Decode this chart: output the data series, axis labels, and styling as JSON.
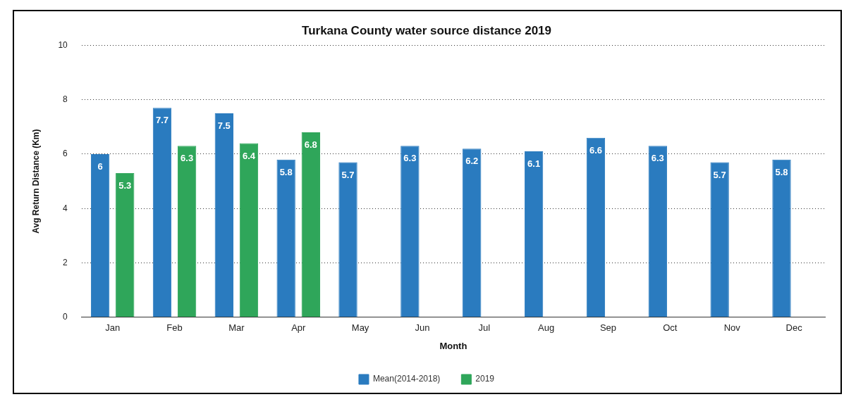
{
  "chart_data": {
    "type": "bar",
    "title": "Turkana County water source distance 2019",
    "xlabel": "Month",
    "ylabel": "Avg Return Distance (Km)",
    "categories": [
      "Jan",
      "Feb",
      "Mar",
      "Apr",
      "May",
      "Jun",
      "Jul",
      "Aug",
      "Sep",
      "Oct",
      "Nov",
      "Dec"
    ],
    "series": [
      {
        "name": "Mean(2014-2018)",
        "color": "#2a7bbf",
        "values": [
          6,
          7.7,
          7.5,
          5.8,
          5.7,
          6.3,
          6.2,
          6.1,
          6.6,
          6.3,
          5.7,
          5.8
        ]
      },
      {
        "name": "2019",
        "color": "#2fa65a",
        "values": [
          5.3,
          6.3,
          6.4,
          6.8,
          null,
          null,
          null,
          null,
          null,
          null,
          null,
          null
        ]
      }
    ],
    "ylim": [
      0,
      10
    ],
    "yticks": [
      0,
      2,
      4,
      6,
      8,
      10
    ],
    "grid": "y",
    "legend": "bottom",
    "data_labels": true
  }
}
